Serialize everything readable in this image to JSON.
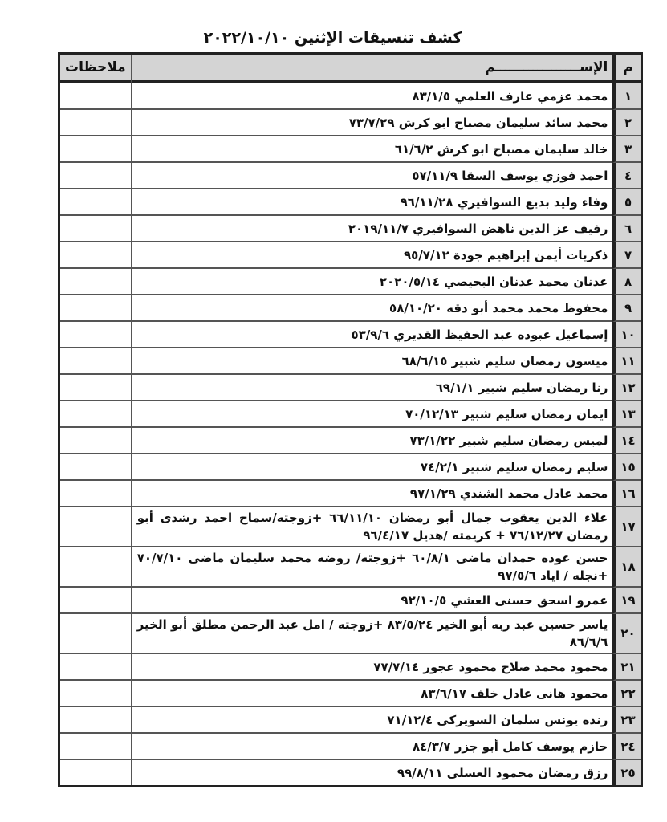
{
  "title": "كشف تنسيقات الإثنين ٢٠٢٢/١٠/١٠",
  "headers": {
    "num": "م",
    "name": "الإســــــــــــــــــم",
    "notes": "ملاحظات"
  },
  "rows": [
    {
      "num": "١",
      "lines": [
        "محمد عزمي عارف العلمي ٨٣/١/٥"
      ]
    },
    {
      "num": "٢",
      "lines": [
        "محمد سائد سليمان مصباح ابو كرش ٧٣/٧/٢٩"
      ]
    },
    {
      "num": "٣",
      "lines": [
        "خالد سليمان مصباح ابو كرش ٦١/٦/٢"
      ]
    },
    {
      "num": "٤",
      "lines": [
        "احمد فوزي يوسف السقا ٥٧/١١/٩"
      ]
    },
    {
      "num": "٥",
      "lines": [
        "وفاء وليد بديع السوافيري ٩٦/١١/٢٨"
      ]
    },
    {
      "num": "٦",
      "lines": [
        "رفيف عز الدين ناهض السوافيري ٢٠١٩/١١/٧"
      ]
    },
    {
      "num": "٧",
      "lines": [
        "ذكريات أيمن إبراهيم جودة ٩٥/٧/١٢"
      ]
    },
    {
      "num": "٨",
      "lines": [
        "عدنان محمد عدنان البحيصي ٢٠٢٠/٥/١٤"
      ]
    },
    {
      "num": "٩",
      "lines": [
        "محفوظ محمد محمد أبو دقه ٥٨/١٠/٢٠"
      ]
    },
    {
      "num": "١٠",
      "lines": [
        "إسماعيل عبوده عبد الحفيظ القديري ٥٣/٩/٦"
      ]
    },
    {
      "num": "١١",
      "lines": [
        "ميسون رمضان سليم شبير  ٦٨/٦/١٥"
      ]
    },
    {
      "num": "١٢",
      "lines": [
        "رنا رمضان سليم شبير  ٦٩/١/١"
      ]
    },
    {
      "num": "١٣",
      "lines": [
        "ايمان رمضان سليم شبير  ٧٠/١٢/١٣"
      ]
    },
    {
      "num": "١٤",
      "lines": [
        "لميس رمضان سليم شبير ٧٣/١/٢٢"
      ]
    },
    {
      "num": "١٥",
      "lines": [
        "سليم رمضان سليم شبير ٧٤/٢/١"
      ]
    },
    {
      "num": "١٦",
      "lines": [
        "محمد عادل محمد الشندي ٩٧/١/٢٩"
      ]
    },
    {
      "num": "١٧",
      "lines": [
        "علاء الدين يعقوب جمال أبو رمضان ٦٦/١١/١٠ +زوجته/سماح احمد رشدى أبو",
        "رمضان ٧٦/١٢/٢٧ + كريمته /هديل ٩٦/٤/١٧"
      ]
    },
    {
      "num": "١٨",
      "lines": [
        "حسن عوده حمدان ماضى ٦٠/٨/١ +زوجته/ روضه محمد سليمان ماضى ٧٠/٧/١٠",
        "+نجله / اياد ٩٧/٥/٦"
      ]
    },
    {
      "num": "١٩",
      "lines": [
        "عمرو اسحق حسنى العشي ٩٢/١٠/٥"
      ]
    },
    {
      "num": "٢٠",
      "lines": [
        "ياسر حسين عبد ربه أبو الخير ٨٣/٥/٢٤ +زوجته / امل عبد الرحمن مطلق أبو الخير",
        "٨٦/٦/٦"
      ]
    },
    {
      "num": "٢١",
      "lines": [
        "محمود محمد صلاح محمود عجور ٧٧/٧/١٤"
      ]
    },
    {
      "num": "٢٢",
      "lines": [
        "محمود هانى عادل خلف ٨٣/٦/١٧"
      ]
    },
    {
      "num": "٢٣",
      "lines": [
        "رنده يونس سلمان السويركى ٧١/١٢/٤"
      ]
    },
    {
      "num": "٢٤",
      "lines": [
        "حازم يوسف كامل أبو جزر ٨٤/٣/٧"
      ]
    },
    {
      "num": "٢٥",
      "lines": [
        "رزق رمضان محمود العسلى ٩٩/٨/١١"
      ]
    }
  ]
}
